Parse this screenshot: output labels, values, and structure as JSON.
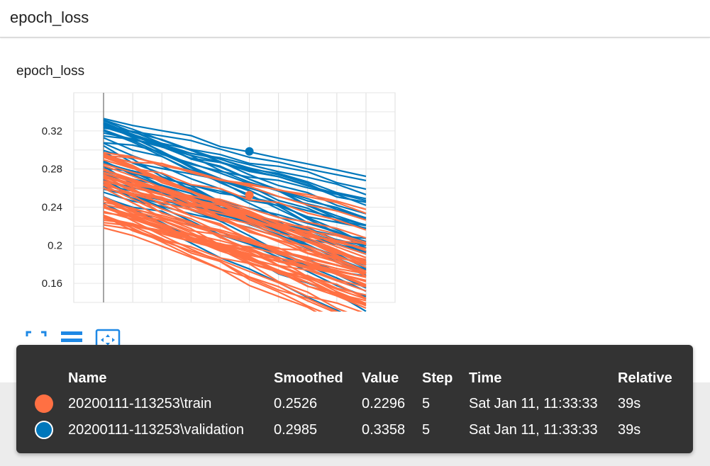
{
  "header": {
    "title": "epoch_loss"
  },
  "card": {
    "title": "epoch_loss"
  },
  "colors": {
    "train": "#ff7043",
    "validation": "#0077bb",
    "tooltip_bg": "#333333",
    "toolbar_icon": "#1e88e5"
  },
  "toolbar": {
    "icons": [
      "fullscreen-icon",
      "toggle-log-scale-icon",
      "fit-domain-icon"
    ]
  },
  "chart_data": {
    "type": "line",
    "y_ticks": [
      "0.32",
      "0.28",
      "0.24",
      "0.2",
      "0.16"
    ],
    "ylim": [
      0.14,
      0.36
    ],
    "xlim": [
      0,
      9
    ],
    "grid": true,
    "highlighted_step": 5,
    "series": [
      {
        "name": "20200111-113253\\train",
        "color": "#ff7043",
        "highlight_value": 0.2526
      },
      {
        "name": "20200111-113253\\validation",
        "color": "#0077bb",
        "highlight_value": 0.2985
      }
    ]
  },
  "tooltip": {
    "columns": [
      "Name",
      "Smoothed",
      "Value",
      "Step",
      "Time",
      "Relative"
    ],
    "rows": [
      {
        "name": "20200111-113253\\train",
        "smoothed": "0.2526",
        "value": "0.2296",
        "step": "5",
        "time": "Sat Jan 11, 11:33:33",
        "relative": "39s",
        "color": "#ff7043"
      },
      {
        "name": "20200111-113253\\validation",
        "smoothed": "0.2985",
        "value": "0.3358",
        "step": "5",
        "time": "Sat Jan 11, 11:33:33",
        "relative": "39s",
        "color": "#0077bb"
      }
    ]
  }
}
